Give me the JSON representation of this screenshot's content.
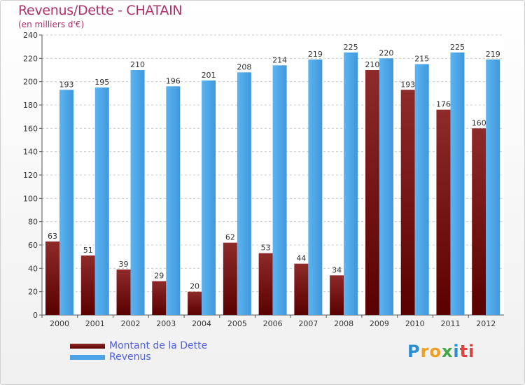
{
  "chart_data": {
    "type": "bar",
    "title": "Revenus/Dette - CHATAIN",
    "subtitle": "(en milliers d'€)",
    "xlabel": "",
    "ylabel": "",
    "ylim": [
      0,
      240
    ],
    "yticks": [
      0,
      20,
      40,
      60,
      80,
      100,
      120,
      140,
      160,
      180,
      200,
      220,
      240
    ],
    "grid": true,
    "legend_position": "bottom-left",
    "categories": [
      "2000",
      "2001",
      "2002",
      "2003",
      "2004",
      "2005",
      "2006",
      "2007",
      "2008",
      "2009",
      "2010",
      "2011",
      "2012"
    ],
    "series": [
      {
        "name": "Montant de la Dette",
        "color": "#8b1a1a",
        "values": [
          63,
          51,
          39,
          29,
          20,
          62,
          53,
          44,
          34,
          210,
          193,
          176,
          160
        ]
      },
      {
        "name": "Revenus",
        "color": "#4aa3e6",
        "values": [
          193,
          195,
          210,
          196,
          201,
          208,
          214,
          219,
          225,
          220,
          215,
          225,
          219
        ]
      }
    ]
  },
  "brand": {
    "letters": [
      "P",
      "r",
      "o",
      "x",
      "i",
      "ti"
    ]
  }
}
